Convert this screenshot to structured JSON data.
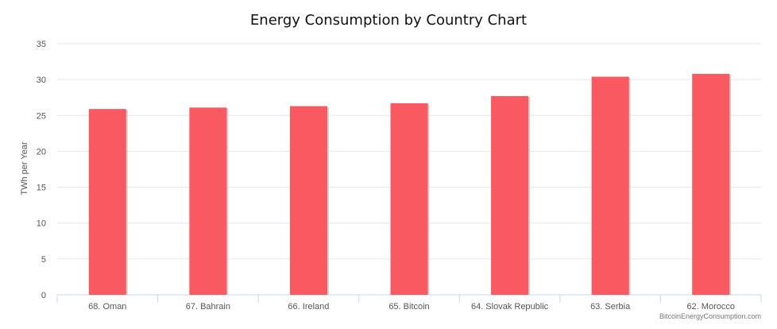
{
  "chart_data": {
    "type": "bar",
    "title": "Energy Consumption by Country Chart",
    "ylabel": "TWh per Year",
    "xlabel": "",
    "categories": [
      "68. Oman",
      "67. Bahrain",
      "66. Ireland",
      "65. Bitcoin",
      "64. Slovak Republic",
      "63. Serbia",
      "62. Morocco"
    ],
    "values": [
      25.9,
      26.1,
      26.3,
      26.7,
      27.7,
      30.4,
      30.8
    ],
    "ylim": [
      0,
      35
    ],
    "yticks": [
      "0",
      "5",
      "10",
      "15",
      "20",
      "25",
      "30",
      "35"
    ],
    "grid": true,
    "legend": "none",
    "bar_color": "#f95a61",
    "credit": "BitcoinEnergyConsumption.com"
  }
}
